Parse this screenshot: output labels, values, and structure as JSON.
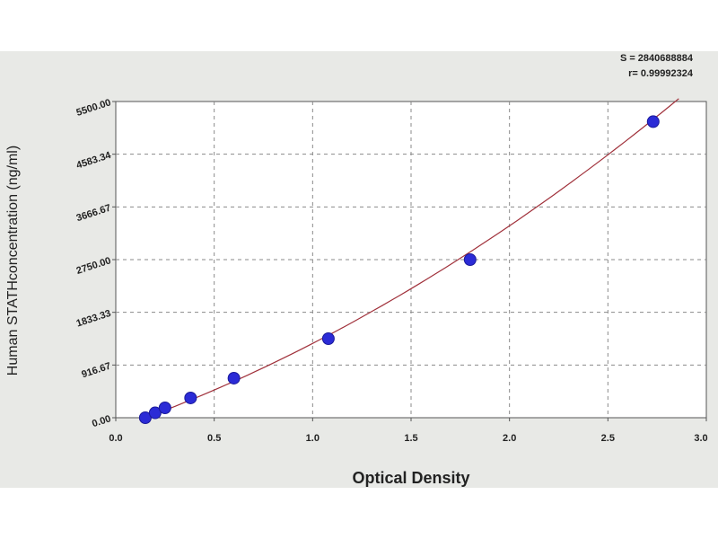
{
  "chart_data": {
    "type": "scatter",
    "xlabel": "Optical Density",
    "ylabel": "Human STATHconcentration (ng/ml)",
    "xlim": [
      0.0,
      3.0
    ],
    "ylim": [
      0.0,
      5500.0
    ],
    "x_ticks": [
      "0.0",
      "0.5",
      "1.0",
      "1.5",
      "2.0",
      "2.5",
      "3.0"
    ],
    "y_ticks": [
      "0.00",
      "916.67",
      "1833.33",
      "2750.00",
      "3666.67",
      "4583.34",
      "5500.00"
    ],
    "grid": true,
    "points": [
      {
        "x": 0.15,
        "y": 0
      },
      {
        "x": 0.2,
        "y": 85
      },
      {
        "x": 0.25,
        "y": 172
      },
      {
        "x": 0.38,
        "y": 344
      },
      {
        "x": 0.6,
        "y": 688
      },
      {
        "x": 1.08,
        "y": 1375
      },
      {
        "x": 1.8,
        "y": 2750
      },
      {
        "x": 2.73,
        "y": 5150
      }
    ],
    "fit": {
      "x0": 0.12,
      "y0": -40,
      "x1": 2.86,
      "y1": 5550
    },
    "stats": [
      "S = 2840688884",
      "r= 0.99992324"
    ],
    "colors": {
      "point": "#2b2bd6",
      "curve": "#a0303a",
      "grid": "#8a8a8a",
      "panel": "#e8e9e6",
      "plot": "#ffffff"
    }
  }
}
